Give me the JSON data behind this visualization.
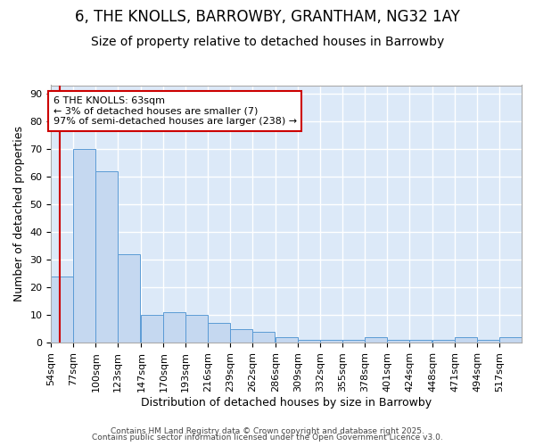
{
  "title": "6, THE KNOLLS, BARROWBY, GRANTHAM, NG32 1AY",
  "subtitle": "Size of property relative to detached houses in Barrowby",
  "xlabel": "Distribution of detached houses by size in Barrowby",
  "ylabel": "Number of detached properties",
  "bar_edges": [
    54,
    77,
    100,
    123,
    147,
    170,
    193,
    216,
    239,
    262,
    286,
    309,
    332,
    355,
    378,
    401,
    424,
    448,
    471,
    494,
    517
  ],
  "bar_heights": [
    24,
    70,
    62,
    32,
    10,
    11,
    10,
    7,
    5,
    4,
    2,
    1,
    1,
    1,
    2,
    1,
    1,
    1,
    2,
    1,
    2
  ],
  "bar_color": "#c5d8f0",
  "bar_edge_color": "#5b9bd5",
  "property_size": 63,
  "property_line_color": "#cc0000",
  "annotation_text": "6 THE KNOLLS: 63sqm\n← 3% of detached houses are smaller (7)\n97% of semi-detached houses are larger (238) →",
  "annotation_box_facecolor": "#ffffff",
  "annotation_box_edgecolor": "#cc0000",
  "ylim": [
    0,
    93
  ],
  "yticks": [
    0,
    10,
    20,
    30,
    40,
    50,
    60,
    70,
    80,
    90
  ],
  "background_color": "#dce9f8",
  "grid_color": "#ffffff",
  "figure_bg": "#ffffff",
  "footer_line1": "Contains HM Land Registry data © Crown copyright and database right 2025.",
  "footer_line2": "Contains public sector information licensed under the Open Government Licence v3.0.",
  "title_fontsize": 12,
  "subtitle_fontsize": 10,
  "tick_fontsize": 8,
  "axis_label_fontsize": 9
}
